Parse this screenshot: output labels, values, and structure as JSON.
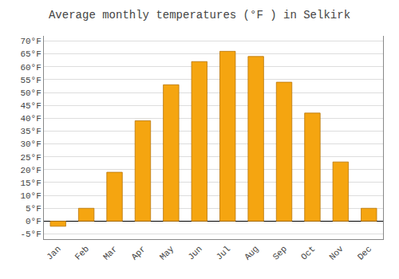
{
  "chart_data": {
    "type": "bar",
    "title": "Average monthly temperatures (°F ) in Selkirk",
    "categories": [
      "Jan",
      "Feb",
      "Mar",
      "Apr",
      "May",
      "Jun",
      "Jul",
      "Aug",
      "Sep",
      "Oct",
      "Nov",
      "Dec"
    ],
    "values": [
      -2,
      5,
      19,
      39,
      53,
      62,
      66,
      64,
      54,
      42,
      23,
      5
    ],
    "color": "#F5A510",
    "ylim": [
      -7,
      72
    ],
    "yticks": [
      {
        "value": -5,
        "label": "-5°F"
      },
      {
        "value": 0,
        "label": "0°F"
      },
      {
        "value": 5,
        "label": "5°F"
      },
      {
        "value": 10,
        "label": "10°F"
      },
      {
        "value": 15,
        "label": "15°F"
      },
      {
        "value": 20,
        "label": "20°F"
      },
      {
        "value": 25,
        "label": "25°F"
      },
      {
        "value": 30,
        "label": "30°F"
      },
      {
        "value": 35,
        "label": "35°F"
      },
      {
        "value": 40,
        "label": "40°F"
      },
      {
        "value": 45,
        "label": "45°F"
      },
      {
        "value": 50,
        "label": "50°F"
      },
      {
        "value": 55,
        "label": "55°F"
      },
      {
        "value": 60,
        "label": "60°F"
      },
      {
        "value": 65,
        "label": "65°F"
      },
      {
        "value": 70,
        "label": "70°F"
      }
    ],
    "grid": true
  }
}
